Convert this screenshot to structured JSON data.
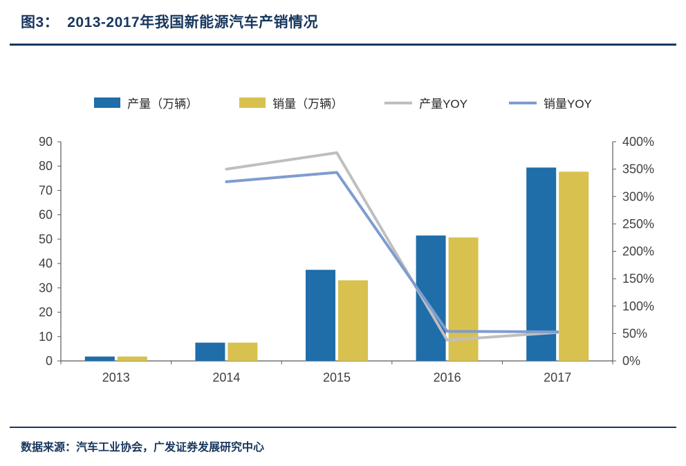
{
  "theme": {
    "accent_navy": "#17365D",
    "axis_line_color": "#595959",
    "axis_text_color": "#404040"
  },
  "header": {
    "figure_label": "图3：",
    "title": "2013-2017年我国新能源汽车产销情况"
  },
  "footer": {
    "source": "数据来源：汽车工业协会，广发证券发展研究中心"
  },
  "chart_data": {
    "type": "combo-bar-line",
    "title": "图3：2013-2017年我国新能源汽车产销情况",
    "categories": [
      "2013",
      "2014",
      "2015",
      "2016",
      "2017"
    ],
    "bar_series": [
      {
        "key": "production",
        "name": "产量（万辆）",
        "color": "#1F6DA9",
        "axis": "left",
        "values": [
          1.8,
          7.5,
          37.4,
          51.5,
          79.4
        ]
      },
      {
        "key": "sales",
        "name": "销量（万辆）",
        "color": "#D8C14E",
        "axis": "left",
        "values": [
          1.8,
          7.5,
          33.1,
          50.7,
          77.7
        ]
      }
    ],
    "line_series": [
      {
        "key": "production-yoy",
        "name": "产量YOY",
        "color": "#BFBFBF",
        "axis": "right",
        "values": [
          null,
          350,
          380,
          38,
          52
        ]
      },
      {
        "key": "sales-yoy",
        "name": "销量YOY",
        "color": "#7E9CD0",
        "axis": "right",
        "values": [
          null,
          327,
          344,
          54,
          53
        ]
      }
    ],
    "left_axis": {
      "min": 0,
      "max": 90,
      "tick_labels": [
        "0",
        "10",
        "20",
        "30",
        "40",
        "50",
        "60",
        "70",
        "80",
        "90"
      ]
    },
    "right_axis": {
      "min": 0,
      "max": 400,
      "tick_labels": [
        "0%",
        "50%",
        "100%",
        "150%",
        "200%",
        "250%",
        "300%",
        "350%",
        "400%"
      ]
    },
    "legend_position": "top",
    "gridlines": false
  }
}
